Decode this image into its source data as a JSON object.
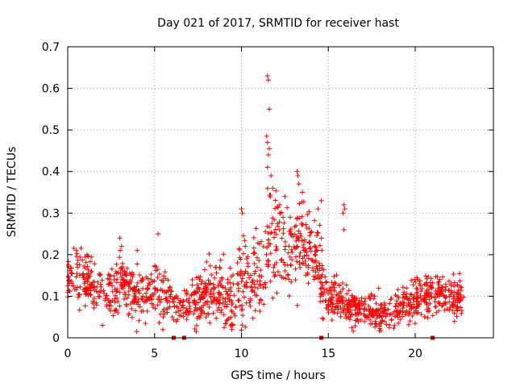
{
  "chart_data": {
    "type": "scatter",
    "title": "Day 021 of 2017, SRMTID for receiver hast",
    "xlabel": "GPS time / hours",
    "ylabel": "SRMTID / TECUs",
    "xlim": [
      0,
      24.5
    ],
    "ylim": [
      0,
      0.7
    ],
    "xticks": [
      "0",
      "5",
      "10",
      "15",
      "20"
    ],
    "yticks": [
      "0",
      "0.1",
      "0.2",
      "0.3",
      "0.4",
      "0.5",
      "0.6",
      "0.7"
    ],
    "grid": true,
    "marker": "plus",
    "color": "#ff0000",
    "series": [
      {
        "name": "SRMTID",
        "profile_hours": [
          0.0,
          0.5,
          1.0,
          1.5,
          2.0,
          2.5,
          3.0,
          3.5,
          4.0,
          4.5,
          5.0,
          5.5,
          6.0,
          6.5,
          7.0,
          7.5,
          8.0,
          8.5,
          9.0,
          9.5,
          10.0,
          10.5,
          11.0,
          11.5,
          12.0,
          12.5,
          13.0,
          13.5,
          14.0,
          14.5,
          15.0,
          15.5,
          16.0,
          16.5,
          17.0,
          17.5,
          18.0,
          18.5,
          19.0,
          19.5,
          20.0,
          20.5,
          21.0,
          21.5,
          22.0,
          22.7
        ],
        "profile_center": [
          0.13,
          0.15,
          0.14,
          0.13,
          0.12,
          0.11,
          0.12,
          0.11,
          0.1,
          0.1,
          0.11,
          0.1,
          0.08,
          0.08,
          0.08,
          0.09,
          0.1,
          0.11,
          0.1,
          0.08,
          0.13,
          0.14,
          0.15,
          0.2,
          0.24,
          0.2,
          0.22,
          0.24,
          0.22,
          0.16,
          0.09,
          0.1,
          0.08,
          0.07,
          0.07,
          0.06,
          0.06,
          0.06,
          0.07,
          0.08,
          0.09,
          0.1,
          0.1,
          0.1,
          0.1,
          0.1
        ],
        "profile_spread": [
          0.03,
          0.04,
          0.03,
          0.03,
          0.03,
          0.03,
          0.035,
          0.03,
          0.03,
          0.03,
          0.035,
          0.035,
          0.02,
          0.02,
          0.025,
          0.03,
          0.03,
          0.035,
          0.04,
          0.04,
          0.05,
          0.05,
          0.055,
          0.06,
          0.06,
          0.055,
          0.06,
          0.06,
          0.05,
          0.045,
          0.025,
          0.03,
          0.02,
          0.02,
          0.02,
          0.02,
          0.02,
          0.02,
          0.02,
          0.025,
          0.025,
          0.03,
          0.03,
          0.025,
          0.025,
          0.025
        ],
        "outliers": [
          [
            0.5,
            0.21
          ],
          [
            3.0,
            0.24
          ],
          [
            3.1,
            0.22
          ],
          [
            5.2,
            0.25
          ],
          [
            10.0,
            0.31
          ],
          [
            10.05,
            0.3
          ],
          [
            11.5,
            0.63
          ],
          [
            11.55,
            0.62
          ],
          [
            11.6,
            0.55
          ],
          [
            11.45,
            0.485
          ],
          [
            11.5,
            0.47
          ],
          [
            11.6,
            0.455
          ],
          [
            11.55,
            0.44
          ],
          [
            11.5,
            0.41
          ],
          [
            11.7,
            0.39
          ],
          [
            11.8,
            0.36
          ],
          [
            12.5,
            0.34
          ],
          [
            12.2,
            0.32
          ],
          [
            13.2,
            0.4
          ],
          [
            13.25,
            0.39
          ],
          [
            13.3,
            0.37
          ],
          [
            13.5,
            0.35
          ],
          [
            14.6,
            0.33
          ],
          [
            14.4,
            0.31
          ],
          [
            15.9,
            0.32
          ],
          [
            15.95,
            0.31
          ],
          [
            15.85,
            0.3
          ],
          [
            15.9,
            0.26
          ],
          [
            9.4,
            0.03
          ],
          [
            9.45,
            0.02
          ],
          [
            2.0,
            0.03
          ],
          [
            4.0,
            0.21
          ]
        ],
        "missing_markers_hours": [
          6.1,
          6.7,
          14.6,
          21.0
        ],
        "time_range_hours": [
          0,
          22.8
        ]
      }
    ]
  }
}
